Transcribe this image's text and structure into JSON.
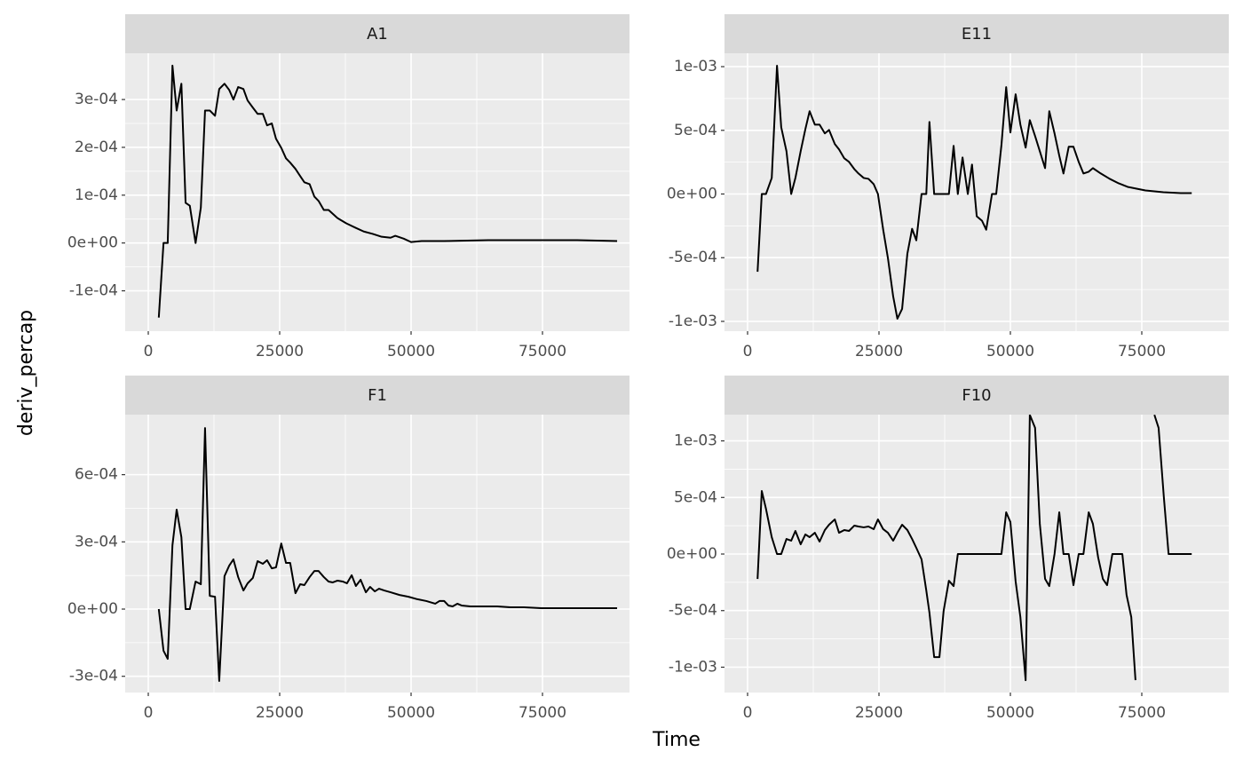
{
  "xlabel": "Time",
  "ylabel": "deriv_percap",
  "chart_data": [
    {
      "type": "line",
      "title": "A1",
      "color": "#000000",
      "grid": true,
      "xlim": [
        -4392,
        91554
      ],
      "ylim": [
        -0.0001844,
        0.0003967
      ],
      "xticks": [
        0,
        25000,
        50000,
        75000
      ],
      "yticks": [
        {
          "value": -0.0001,
          "label": "-1e-04"
        },
        {
          "value": 0,
          "label": "0e+00"
        },
        {
          "value": 0.0001,
          "label": "1e-04"
        },
        {
          "value": 0.0002,
          "label": "2e-04"
        },
        {
          "value": 0.0003,
          "label": "3e-04"
        }
      ],
      "x": [
        2000,
        2900,
        3700,
        4600,
        5400,
        6300,
        7100,
        7900,
        9000,
        10000,
        10800,
        11700,
        12700,
        13500,
        14500,
        15400,
        16200,
        17100,
        18100,
        18900,
        19900,
        20800,
        21800,
        22600,
        23500,
        24300,
        25300,
        26200,
        27000,
        28000,
        28900,
        29700,
        30700,
        31600,
        32400,
        33400,
        34300,
        36000,
        37700,
        39400,
        41000,
        42700,
        44400,
        46100,
        47000,
        48600,
        50000,
        52000,
        56300,
        64700,
        73100,
        81600,
        89200
      ],
      "values": [
        -0.000156,
        0,
        0,
        0.000371,
        0.000277,
        0.000333,
        8.4e-05,
        7.8e-05,
        0,
        7.4e-05,
        0.000277,
        0.000277,
        0.000266,
        0.000322,
        0.000333,
        0.00032,
        0.0003,
        0.000326,
        0.000322,
        0.000298,
        0.000283,
        0.00027,
        0.00027,
        0.000246,
        0.00025,
        0.000218,
        0.000199,
        0.000177,
        0.000168,
        0.000155,
        0.00014,
        0.000127,
        0.000123,
        9.7e-05,
        8.8e-05,
        6.9e-05,
        6.9e-05,
        5.2e-05,
        4.1e-05,
        3.2e-05,
        2.4e-05,
        1.9e-05,
        1.3e-05,
        1.1e-05,
        1.5e-05,
        9e-06,
        2e-06,
        4e-06,
        4e-06,
        6e-06,
        6e-06,
        6e-06,
        4e-06
      ]
    },
    {
      "type": "line",
      "title": "E11",
      "color": "#000000",
      "grid": true,
      "xlim": [
        -4392,
        91554
      ],
      "ylim": [
        -0.001077,
        0.001105
      ],
      "xticks": [
        0,
        25000,
        50000,
        75000
      ],
      "yticks": [
        {
          "value": -0.001,
          "label": "-1e-03"
        },
        {
          "value": -0.0005,
          "label": "-5e-04"
        },
        {
          "value": 0,
          "label": "0e+00"
        },
        {
          "value": 0.0005,
          "label": "5e-04"
        },
        {
          "value": 0.001,
          "label": "1e-03"
        }
      ],
      "x": [
        1900,
        2700,
        3500,
        4600,
        5600,
        6400,
        7400,
        8300,
        9100,
        10100,
        11000,
        11800,
        12800,
        13700,
        14700,
        15500,
        16600,
        17400,
        18400,
        19300,
        20300,
        21100,
        22100,
        23000,
        24000,
        24800,
        25800,
        26700,
        27700,
        28500,
        29400,
        30400,
        31300,
        32100,
        33100,
        34000,
        34600,
        35500,
        36500,
        37300,
        38300,
        39200,
        40000,
        40900,
        41900,
        42700,
        43600,
        44600,
        45400,
        46500,
        47300,
        48300,
        49200,
        50000,
        51000,
        51900,
        52900,
        53700,
        54700,
        55600,
        56600,
        57400,
        58400,
        59300,
        60100,
        61100,
        62000,
        63000,
        63900,
        64900,
        65700,
        67200,
        68900,
        70600,
        72300,
        74000,
        75700,
        77400,
        79100,
        82400,
        84500
      ],
      "values": [
        -0.00061,
        0,
        0,
        0.000126,
        0.001007,
        0.000524,
        0.000336,
        0,
        0.000126,
        0.000336,
        0.00051,
        0.00065,
        0.000545,
        0.000545,
        0.000476,
        0.000503,
        0.000392,
        0.00035,
        0.00028,
        0.000252,
        0.000196,
        0.000161,
        0.000126,
        0.000119,
        7.7e-05,
        0,
        -0.00028,
        -0.000503,
        -0.000804,
        -0.000979,
        -0.000902,
        -0.000469,
        -0.000273,
        -0.000364,
        0,
        0,
        0.000566,
        0,
        0,
        0,
        0,
        0.000378,
        0,
        0.000287,
        0,
        0.000231,
        -0.000175,
        -0.00021,
        -0.00028,
        0,
        0,
        0.000385,
        0.000839,
        0.000483,
        0.000783,
        0.000545,
        0.000364,
        0.00058,
        0.000455,
        0.000336,
        0.000203,
        0.00065,
        0.000476,
        0.000301,
        0.000161,
        0.000371,
        0.000371,
        0.000252,
        0.000161,
        0.000175,
        0.000203,
        0.000161,
        0.000119,
        8.4e-05,
        5.6e-05,
        4.2e-05,
        2.8e-05,
        2.1e-05,
        1.4e-05,
        7e-06,
        7e-06
      ]
    },
    {
      "type": "line",
      "title": "F1",
      "color": "#000000",
      "grid": true,
      "xlim": [
        -4392,
        91554
      ],
      "ylim": [
        -0.0003725,
        0.000868
      ],
      "xticks": [
        0,
        25000,
        50000,
        75000
      ],
      "yticks": [
        {
          "value": -0.0003,
          "label": "-3e-04"
        },
        {
          "value": 0,
          "label": "0e+00"
        },
        {
          "value": 0.0003,
          "label": "3e-04"
        },
        {
          "value": 0.0006,
          "label": "6e-04"
        }
      ],
      "x": [
        2000,
        2900,
        3700,
        4600,
        5400,
        6300,
        7100,
        7900,
        9000,
        10000,
        10800,
        11700,
        12700,
        13500,
        14500,
        15400,
        16200,
        17100,
        18100,
        18900,
        19900,
        20800,
        21800,
        22600,
        23500,
        24300,
        25300,
        26200,
        27000,
        28000,
        28900,
        29700,
        30700,
        31600,
        32400,
        33400,
        34300,
        35100,
        36000,
        37000,
        37800,
        38700,
        39500,
        40400,
        41400,
        42200,
        43100,
        43900,
        44900,
        46100,
        47800,
        49500,
        51200,
        52900,
        54600,
        55400,
        56300,
        57100,
        57900,
        58800,
        59600,
        61300,
        63900,
        66400,
        68900,
        71500,
        74800,
        78200,
        83300,
        89200
      ],
      "values": [
        0,
        -0.000186,
        -0.000222,
        0.000285,
        0.000444,
        0.000321,
        0,
        0,
        0.000123,
        0.000111,
        0.000808,
        5.9e-05,
        5.5e-05,
        -0.000321,
        0.000147,
        0.000194,
        0.000222,
        0.000143,
        8.3e-05,
        0.000115,
        0.000139,
        0.000214,
        0.000202,
        0.000218,
        0.000182,
        0.000186,
        0.000293,
        0.000206,
        0.000206,
        7.1e-05,
        0.000111,
        0.000107,
        0.000143,
        0.00017,
        0.00017,
        0.000143,
        0.000123,
        0.000119,
        0.000127,
        0.000123,
        0.000115,
        0.000151,
        0.000103,
        0.000131,
        7.5e-05,
        9.9e-05,
        7.9e-05,
        9.1e-05,
        8.3e-05,
        7.5e-05,
        6.3e-05,
        5.5e-05,
        4.4e-05,
        3.6e-05,
        2.4e-05,
        3.6e-05,
        3.6e-05,
        1.6e-05,
        1.2e-05,
        2.4e-05,
        1.6e-05,
        1.2e-05,
        1.2e-05,
        1.2e-05,
        8e-06,
        8e-06,
        4e-06,
        4e-06,
        4e-06,
        4e-06
      ]
    },
    {
      "type": "line",
      "title": "F10",
      "color": "#000000",
      "grid": true,
      "xlim": [
        -4392,
        91554
      ],
      "ylim": [
        -0.001224,
        0.001232
      ],
      "xticks": [
        0,
        25000,
        50000,
        75000
      ],
      "yticks": [
        {
          "value": -0.001,
          "label": "-1e-03"
        },
        {
          "value": -0.0005,
          "label": "-5e-04"
        },
        {
          "value": 0,
          "label": "0e+00"
        },
        {
          "value": 0.0005,
          "label": "5e-04"
        },
        {
          "value": 0.001,
          "label": "1e-03"
        }
      ],
      "x": [
        1900,
        2700,
        3500,
        4600,
        5600,
        6400,
        7400,
        8300,
        9100,
        10100,
        11000,
        11800,
        12800,
        13700,
        14700,
        15500,
        16600,
        17400,
        18400,
        19300,
        20300,
        21100,
        22100,
        23000,
        24000,
        24800,
        25800,
        26700,
        27700,
        28500,
        29400,
        30400,
        31300,
        32100,
        33100,
        34000,
        34600,
        35500,
        36500,
        37300,
        38300,
        39200,
        40000,
        41000,
        41900,
        43600,
        45300,
        48300,
        49200,
        50000,
        51000,
        51900,
        52900,
        53700,
        54700,
        55600,
        56600,
        57400,
        58400,
        59300,
        60100,
        61100,
        62000,
        63000,
        63900,
        64900,
        65700,
        66700,
        67600,
        68400,
        69400,
        70300,
        71300,
        72100,
        73000,
        73800,
        75500,
        77400,
        78200,
        79200,
        80100,
        81100,
        82400,
        84500
      ],
      "values": [
        -0.00022,
        0.000557,
        0.0004,
        0.000149,
        0,
        0,
        0.000133,
        0.000118,
        0.000204,
        8.6e-05,
        0.000173,
        0.000149,
        0.000188,
        0.00011,
        0.000212,
        0.000259,
        0.000306,
        0.000188,
        0.000212,
        0.000204,
        0.000251,
        0.000243,
        0.000236,
        0.000243,
        0.00022,
        0.000306,
        0.00022,
        0.000188,
        0.000118,
        0.000188,
        0.000259,
        0.000212,
        0.000133,
        5.5e-05,
        -4.7e-05,
        -0.000322,
        -0.000518,
        -0.000911,
        -0.000911,
        -0.000502,
        -0.000236,
        -0.000283,
        0,
        0,
        0,
        0,
        0,
        0,
        0.000369,
        0.000283,
        -0.000243,
        -0.000557,
        -0.001115,
        0.00123,
        0.001115,
        0.000267,
        -0.00022,
        -0.000283,
        0,
        0.000369,
        0,
        0,
        -0.000275,
        0,
        0,
        0.000369,
        0.000267,
        -3.1e-05,
        -0.00022,
        -0.000275,
        0,
        0,
        0,
        -0.000361,
        -0.000557,
        -0.001115,
        null,
        0.00123,
        0.001115,
        0.000502,
        0,
        0,
        0,
        0
      ]
    }
  ]
}
